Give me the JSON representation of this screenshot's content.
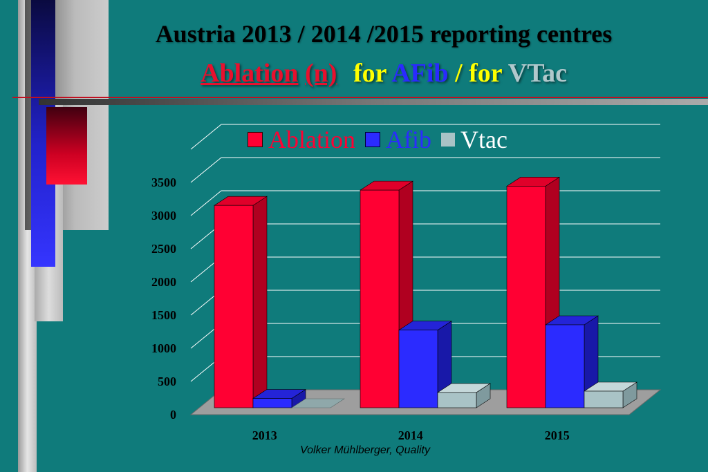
{
  "title": {
    "line1": "Austria 2013 / 2014 /2015 reporting centres",
    "part_ablation": "Ablation",
    "part_n": "(n)",
    "part_for1": "for",
    "part_afib": "AFib",
    "part_slash_for": "/ for",
    "part_vtac": "VTac"
  },
  "footer": "Volker Mühlberger, Quality",
  "colors": {
    "background": "#0f7b7b",
    "ablation": "#ff0033",
    "afib": "#2b2bff",
    "vtac": "#a9c3c6"
  },
  "chart_data": {
    "type": "bar",
    "categories": [
      "2013",
      "2014",
      "2015"
    ],
    "series": [
      {
        "name": "Ablation",
        "values": [
          3050,
          3280,
          3340
        ]
      },
      {
        "name": "Afib",
        "values": [
          140,
          1170,
          1250
        ]
      },
      {
        "name": "Vtac",
        "values": [
          0,
          230,
          250
        ]
      }
    ],
    "y_ticks": [
      "0",
      "500",
      "1000",
      "1500",
      "2000",
      "2500",
      "3000",
      "3500"
    ],
    "ylim": [
      0,
      3500
    ],
    "grid": true,
    "legend_position": "top",
    "three_d": true
  }
}
